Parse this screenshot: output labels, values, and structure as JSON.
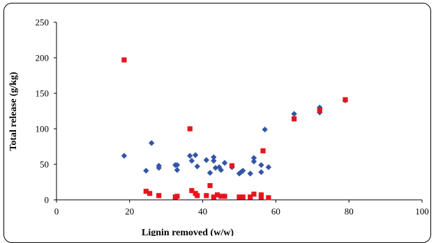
{
  "chart_data": {
    "type": "scatter",
    "title": "",
    "xlabel": "Lignin removed (w/w)",
    "ylabel": "Total release (g/kg)",
    "xlim": [
      0,
      100
    ],
    "ylim": [
      0,
      250
    ],
    "x_ticks": [
      "0",
      "20",
      "40",
      "60",
      "80",
      "100"
    ],
    "y_ticks": [
      "0",
      "50",
      "100",
      "150",
      "200",
      "250"
    ],
    "grid": false,
    "legend": "none",
    "series": [
      {
        "color": "#3355A5",
        "marker": "diamond",
        "points": [
          [
            18.5,
            62
          ],
          [
            24.5,
            41
          ],
          [
            26,
            80
          ],
          [
            28,
            48
          ],
          [
            28,
            45
          ],
          [
            32.5,
            49
          ],
          [
            33,
            42
          ],
          [
            33,
            49
          ],
          [
            36.5,
            62
          ],
          [
            37,
            55
          ],
          [
            38,
            63
          ],
          [
            38.5,
            47
          ],
          [
            41,
            56
          ],
          [
            42,
            38
          ],
          [
            43,
            60
          ],
          [
            43,
            55
          ],
          [
            43.5,
            45
          ],
          [
            44.5,
            46
          ],
          [
            45,
            42
          ],
          [
            46,
            52
          ],
          [
            48,
            46
          ],
          [
            50,
            37
          ],
          [
            50.5,
            39
          ],
          [
            51,
            41
          ],
          [
            53,
            37
          ],
          [
            54,
            59
          ],
          [
            54,
            54
          ],
          [
            56,
            49
          ],
          [
            56,
            39
          ],
          [
            57,
            99
          ],
          [
            58,
            46
          ],
          [
            65,
            121
          ],
          [
            72,
            130
          ],
          [
            72,
            123
          ],
          [
            79,
            140
          ]
        ]
      },
      {
        "color": "#E8141C",
        "marker": "square",
        "points": [
          [
            18.5,
            197
          ],
          [
            24.5,
            12
          ],
          [
            25.5,
            9
          ],
          [
            28,
            6
          ],
          [
            32.5,
            4
          ],
          [
            33,
            5
          ],
          [
            36.5,
            100
          ],
          [
            37,
            13
          ],
          [
            38,
            9
          ],
          [
            38.5,
            6
          ],
          [
            41,
            6
          ],
          [
            42,
            20
          ],
          [
            43,
            4
          ],
          [
            44,
            7
          ],
          [
            45,
            5
          ],
          [
            46,
            5
          ],
          [
            48,
            48
          ],
          [
            50,
            4
          ],
          [
            51,
            4
          ],
          [
            53,
            4
          ],
          [
            54,
            8
          ],
          [
            56,
            7
          ],
          [
            56,
            4
          ],
          [
            56.5,
            69
          ],
          [
            58,
            3
          ],
          [
            65,
            114
          ],
          [
            72,
            126
          ],
          [
            79,
            141
          ]
        ]
      }
    ]
  }
}
